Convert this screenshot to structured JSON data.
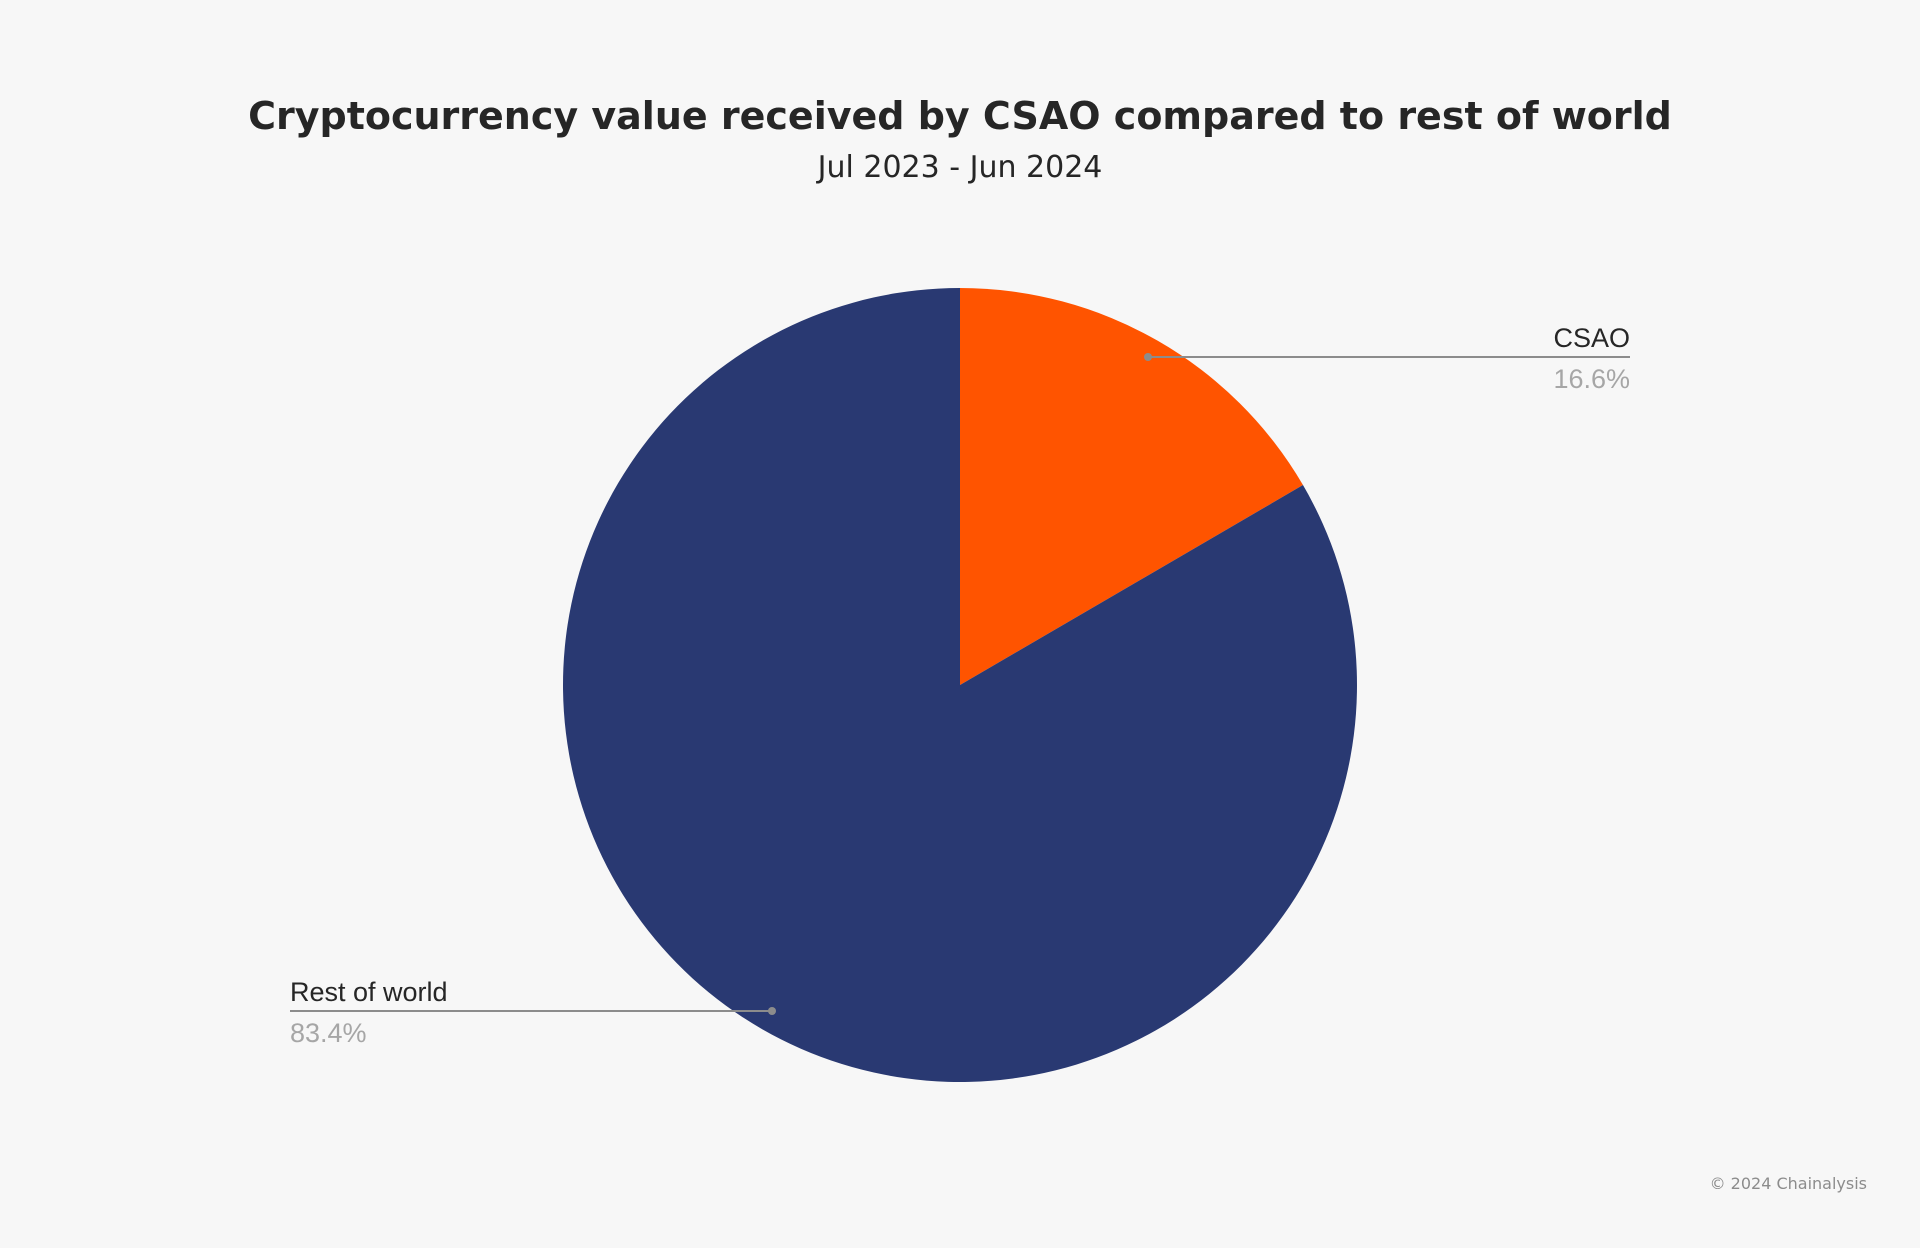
{
  "chart_data": {
    "type": "pie",
    "title": "Cryptocurrency value received by CSAO compared to rest of world",
    "subtitle": "Jul 2023 - Jun 2024",
    "slices": [
      {
        "name": "CSAO",
        "value": 16.6,
        "label": "16.6%",
        "color": "#ff5400"
      },
      {
        "name": "Rest of world",
        "value": 83.4,
        "label": "83.4%",
        "color": "#293972"
      }
    ],
    "start_angle": "12 o'clock",
    "direction": "clockwise",
    "legend": "none",
    "label_style": "callout lines"
  },
  "credit": "© 2024 Chainalysis",
  "colors": {
    "background": "#f7f7f7",
    "leader_line": "#8c8c8c"
  }
}
